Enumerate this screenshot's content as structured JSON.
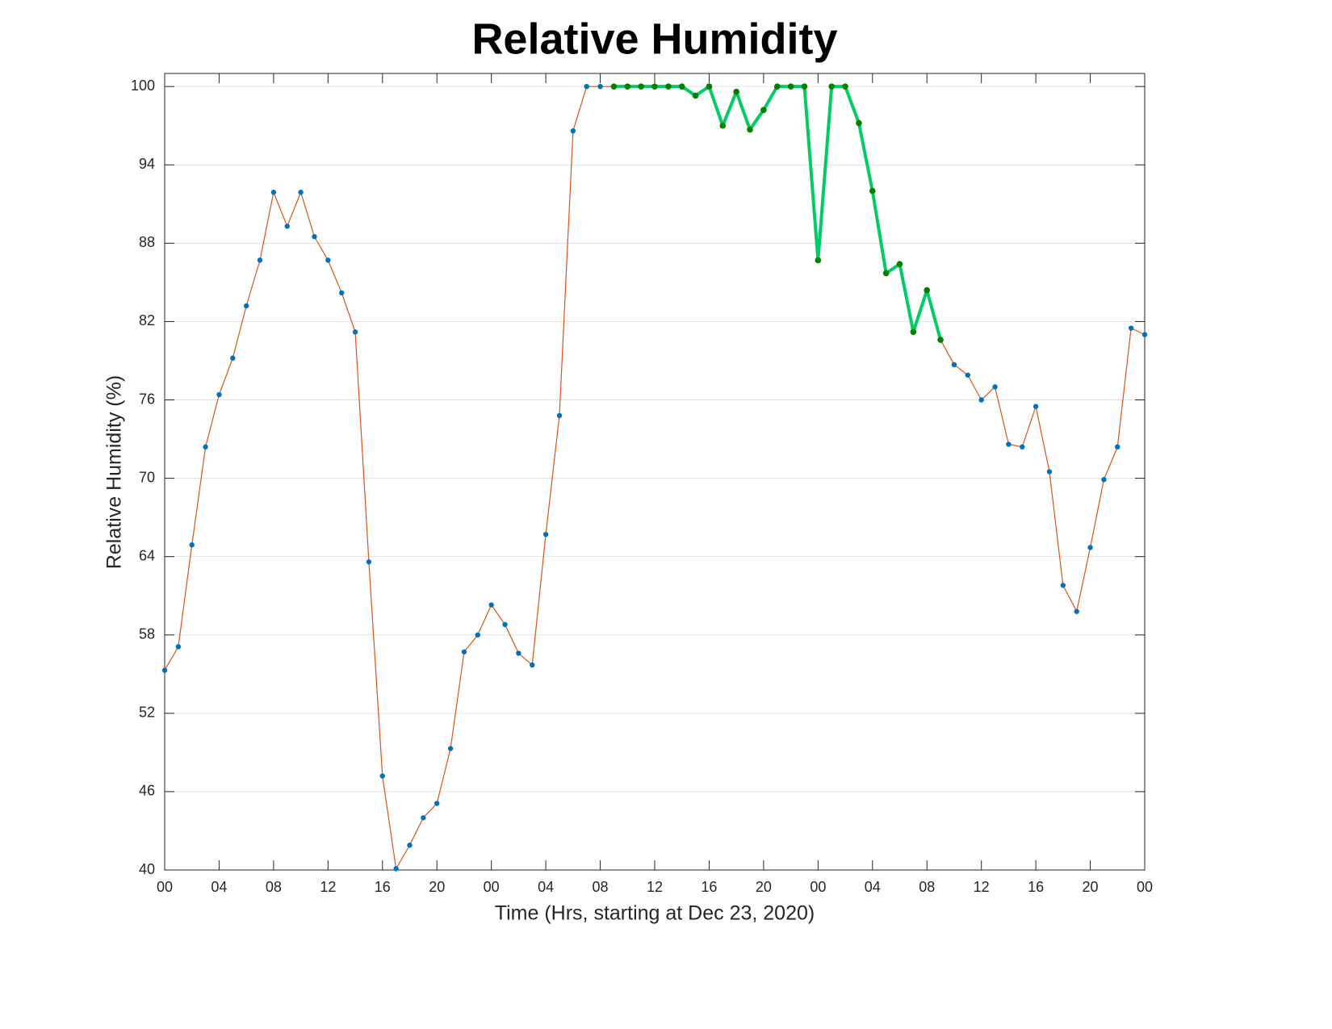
{
  "chart_data": {
    "type": "line",
    "title": "Relative Humidity",
    "x_label": "Time (Hrs, starting at Dec 23, 2020)",
    "y_label": "Relative Humidity (%)",
    "xlim": [
      0,
      72
    ],
    "ylim": [
      40,
      101
    ],
    "xticks": [
      {
        "value": 0,
        "label": "00"
      },
      {
        "value": 4,
        "label": "04"
      },
      {
        "value": 8,
        "label": "08"
      },
      {
        "value": 12,
        "label": "12"
      },
      {
        "value": 16,
        "label": "16"
      },
      {
        "value": 20,
        "label": "20"
      },
      {
        "value": 24,
        "label": "00"
      },
      {
        "value": 28,
        "label": "04"
      },
      {
        "value": 32,
        "label": "08"
      },
      {
        "value": 36,
        "label": "12"
      },
      {
        "value": 40,
        "label": "16"
      },
      {
        "value": 44,
        "label": "20"
      },
      {
        "value": 48,
        "label": "00"
      },
      {
        "value": 52,
        "label": "04"
      },
      {
        "value": 56,
        "label": "08"
      },
      {
        "value": 60,
        "label": "12"
      },
      {
        "value": 64,
        "label": "16"
      },
      {
        "value": 68,
        "label": "20"
      },
      {
        "value": 72,
        "label": "00"
      }
    ],
    "yticks": [
      40,
      46,
      52,
      58,
      64,
      70,
      76,
      82,
      88,
      94,
      100
    ],
    "grid": true,
    "series": [
      {
        "color": "#d95319",
        "marker_color": "#0072bd",
        "x": [
          0,
          1,
          2,
          3,
          4,
          5,
          6,
          7,
          8,
          9,
          10,
          11,
          12,
          13,
          14,
          15,
          16,
          17,
          18,
          19,
          20,
          21,
          22,
          23,
          24,
          25,
          26,
          27,
          28,
          29,
          30,
          31,
          32,
          33,
          34,
          35,
          36,
          37,
          38,
          39,
          40,
          41,
          42,
          43,
          44,
          45,
          46,
          47,
          48,
          49,
          50,
          51,
          52,
          53,
          54,
          55,
          56,
          57,
          58,
          59,
          60,
          61,
          62,
          63,
          64,
          65,
          66,
          67,
          68,
          69,
          70,
          71,
          72
        ],
        "values": [
          55.3,
          57.1,
          64.9,
          72.4,
          76.4,
          79.2,
          83.2,
          86.7,
          91.9,
          89.3,
          91.9,
          88.5,
          86.7,
          84.2,
          81.2,
          63.6,
          47.2,
          40.1,
          41.9,
          44.0,
          45.1,
          49.3,
          56.7,
          58.0,
          60.3,
          58.8,
          56.6,
          55.7,
          65.7,
          74.8,
          96.6,
          100,
          100,
          100,
          100,
          100,
          100,
          100,
          100,
          99.3,
          100,
          97.0,
          99.6,
          96.7,
          98.2,
          100,
          100,
          100,
          86.7,
          100,
          100,
          97.2,
          92.0,
          85.7,
          86.4,
          81.2,
          84.4,
          80.6,
          78.7,
          77.9,
          76.0,
          77.0,
          72.6,
          72.4,
          75.5,
          70.5,
          61.8,
          59.8,
          64.7,
          69.9,
          72.4,
          81.5,
          81.0
        ]
      },
      {
        "color": "#00cc66",
        "marker_color": "#007f00",
        "x": [
          33,
          34,
          35,
          36,
          37,
          38,
          39,
          40,
          41,
          42,
          43,
          44,
          45,
          46,
          47,
          48,
          49,
          50,
          51,
          52,
          53,
          54,
          55,
          56,
          57
        ],
        "values": [
          100,
          100,
          100,
          100,
          100,
          100,
          99.3,
          100,
          97.0,
          99.6,
          96.7,
          98.2,
          100,
          100,
          100,
          86.7,
          100,
          100,
          97.2,
          92.0,
          85.7,
          86.4,
          81.2,
          84.4,
          80.6
        ]
      }
    ]
  }
}
